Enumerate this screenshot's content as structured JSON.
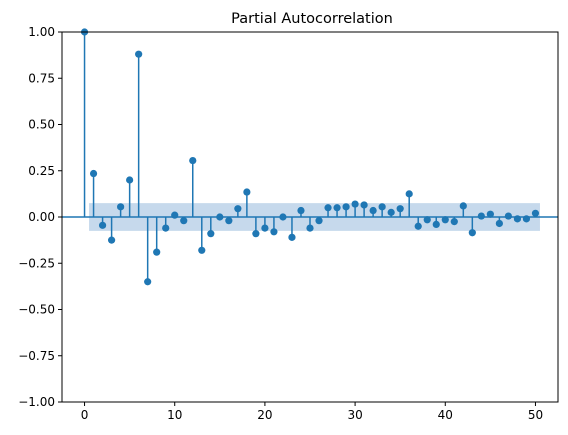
{
  "chart_data": {
    "type": "stem",
    "title": "Partial Autocorrelation",
    "xlabel": "",
    "ylabel": "",
    "xlim": [
      -2.5,
      52.5
    ],
    "ylim": [
      -1.0,
      1.0
    ],
    "x_ticks": [
      0,
      10,
      20,
      30,
      40,
      50
    ],
    "x_tick_labels": [
      "0",
      "10",
      "20",
      "30",
      "40",
      "50"
    ],
    "y_ticks": [
      -1.0,
      -0.75,
      -0.5,
      -0.25,
      0.0,
      0.25,
      0.5,
      0.75,
      1.0
    ],
    "y_tick_labels": [
      "−1.00",
      "−0.75",
      "−0.50",
      "−0.25",
      "0.00",
      "0.25",
      "0.50",
      "0.75",
      "1.00"
    ],
    "confidence_band": {
      "x_start": 0.5,
      "x_end": 50.5,
      "lower": -0.075,
      "upper": 0.075,
      "color": "#c6d9ec"
    },
    "series_color": "#1f77b4",
    "grid": false,
    "lags": [
      0,
      1,
      2,
      3,
      4,
      5,
      6,
      7,
      8,
      9,
      10,
      11,
      12,
      13,
      14,
      15,
      16,
      17,
      18,
      19,
      20,
      21,
      22,
      23,
      24,
      25,
      26,
      27,
      28,
      29,
      30,
      31,
      32,
      33,
      34,
      35,
      36,
      37,
      38,
      39,
      40,
      41,
      42,
      43,
      44,
      45,
      46,
      47,
      48,
      49,
      50
    ],
    "values": [
      1.0,
      0.235,
      -0.045,
      -0.125,
      0.055,
      0.2,
      0.88,
      -0.35,
      -0.19,
      -0.06,
      0.01,
      -0.02,
      0.305,
      -0.18,
      -0.09,
      0.0,
      -0.02,
      0.045,
      0.135,
      -0.09,
      -0.06,
      -0.08,
      0.0,
      -0.11,
      0.035,
      -0.06,
      -0.02,
      0.05,
      0.05,
      0.055,
      0.07,
      0.065,
      0.035,
      0.055,
      0.025,
      0.045,
      0.125,
      -0.05,
      -0.015,
      -0.04,
      -0.015,
      -0.025,
      0.06,
      -0.085,
      0.005,
      0.015,
      -0.035,
      0.005,
      -0.01,
      -0.01,
      0.02
    ]
  }
}
